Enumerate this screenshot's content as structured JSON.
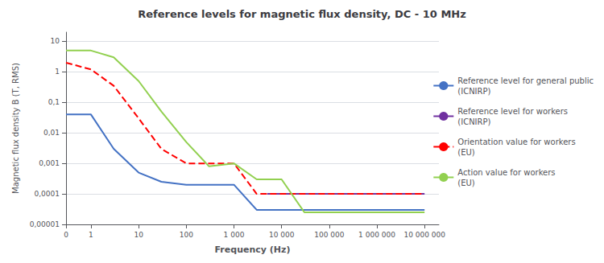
{
  "chart_data": {
    "type": "line",
    "title": "Reference levels for magnetic flux density, DC - 10 MHz",
    "xlabel": "Frequency (Hz)",
    "ylabel": "Magnetic flux density B (T, RMS)",
    "log": true,
    "grid": "y",
    "legend": "right",
    "xlim": [
      0.3,
      20000000
    ],
    "ylim": [
      1e-05,
      20
    ],
    "xticks": [
      {
        "value": 0.3,
        "label": "0"
      },
      1,
      10,
      100,
      {
        "value": 1000,
        "label": "1 000"
      },
      {
        "value": 10000,
        "label": "10 000"
      },
      {
        "value": 100000,
        "label": "100 000"
      },
      {
        "value": 1000000,
        "label": "1 000 000"
      },
      {
        "value": 10000000,
        "label": "10 000 000"
      }
    ],
    "yticks": [
      {
        "value": 1e-05,
        "label": "0,00001"
      },
      {
        "value": 0.0001,
        "label": "0,0001"
      },
      {
        "value": 0.001,
        "label": "0,001"
      },
      {
        "value": 0.01,
        "label": "0,01"
      },
      {
        "value": 0.1,
        "label": "0,1"
      },
      1,
      10
    ],
    "series": [
      {
        "name": "Reference level for general public\n(ICNIRP)",
        "color": "#4472C4",
        "line_style": "solid",
        "x": [
          0.3,
          1,
          3,
          10,
          30,
          100,
          300,
          1000,
          3000,
          5000,
          10000,
          100000,
          1000000,
          10000000
        ],
        "values": [
          0.04,
          0.04,
          0.003,
          0.0005,
          0.00025,
          0.0002,
          0.0002,
          0.0002,
          3e-05,
          3e-05,
          3e-05,
          3e-05,
          3e-05,
          3e-05
        ]
      },
      {
        "name": "Reference level for workers\n(ICNIRP)",
        "color": "#7030A0",
        "line_style": "solid",
        "x": [
          5000,
          10000,
          100000,
          1000000,
          10000000
        ],
        "values": [
          0.0001,
          0.0001,
          0.0001,
          0.0001,
          0.0001
        ]
      },
      {
        "name": "Orientation value for workers\n(EU)",
        "color": "#FF0000",
        "line_style": "dashed",
        "x": [
          0.3,
          1,
          3,
          10,
          30,
          100,
          300,
          1000,
          3000,
          5000,
          10000,
          100000,
          1000000,
          10000000
        ],
        "values": [
          2.0,
          1.2,
          0.35,
          0.03,
          0.003,
          0.001,
          0.001,
          0.001,
          0.0001,
          0.0001,
          0.0001,
          0.0001,
          0.0001,
          0.0001
        ]
      },
      {
        "name": "Action value for workers\n(EU)",
        "color": "#92D050",
        "line_style": "solid",
        "x": [
          0.3,
          1,
          3,
          10,
          30,
          100,
          300,
          1000,
          3000,
          5000,
          10000,
          30000,
          100000,
          1000000,
          10000000
        ],
        "values": [
          5.0,
          5.0,
          3.0,
          0.5,
          0.05,
          0.005,
          0.0008,
          0.001,
          0.0003,
          0.0003,
          0.0003,
          2.5e-05,
          2.5e-05,
          2.5e-05,
          2.5e-05
        ]
      }
    ]
  }
}
